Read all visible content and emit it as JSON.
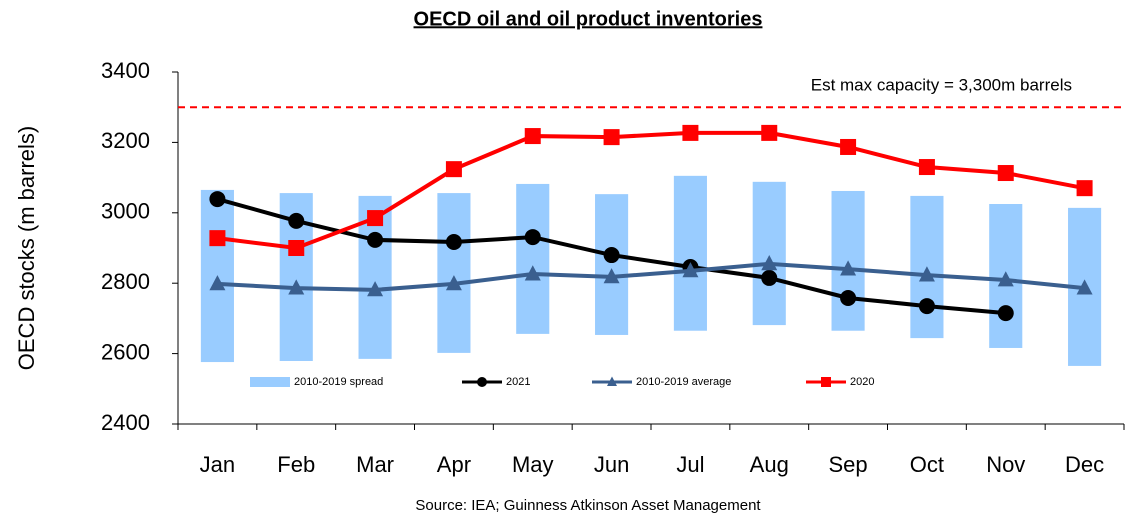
{
  "chart_data": {
    "type": "line",
    "title": "OECD oil and oil product inventories",
    "y_label": "OECD stocks (m barrels)",
    "source": "Source: IEA; Guinness Atkinson Asset Management",
    "categories": [
      "Jan",
      "Feb",
      "Mar",
      "Apr",
      "May",
      "Jun",
      "Jul",
      "Aug",
      "Sep",
      "Oct",
      "Nov",
      "Dec"
    ],
    "ylim": [
      2400,
      3400
    ],
    "yticks": [
      2400,
      2600,
      2800,
      3000,
      3200,
      3400
    ],
    "reference_line": {
      "value": 3300,
      "label": "Est max capacity = 3,300m barrels",
      "color": "#ff0000"
    },
    "spread": {
      "name": "2010-2019 spread",
      "color": "#99ccff",
      "low": [
        2576,
        2579,
        2585,
        2602,
        2656,
        2653,
        2665,
        2681,
        2665,
        2644,
        2616,
        2565
      ],
      "high": [
        3065,
        3056,
        3048,
        3056,
        3082,
        3053,
        3105,
        3088,
        3062,
        3048,
        3025,
        3014
      ]
    },
    "series": [
      {
        "name": "2021",
        "color": "#000000",
        "marker": "circle",
        "values": [
          3039,
          2977,
          2923,
          2917,
          2931,
          2880,
          2846,
          2815,
          2758,
          2735,
          2715,
          null
        ]
      },
      {
        "name": "2010-2019 average",
        "color": "#3a5f8f",
        "marker": "triangle",
        "values": [
          2798,
          2786,
          2781,
          2798,
          2826,
          2818,
          2835,
          2855,
          2840,
          2823,
          2809,
          2786
        ]
      },
      {
        "name": "2020",
        "color": "#ff0000",
        "marker": "square",
        "values": [
          2928,
          2900,
          2985,
          3124,
          3218,
          3215,
          3227,
          3227,
          3187,
          3130,
          3113,
          3070
        ]
      }
    ]
  }
}
